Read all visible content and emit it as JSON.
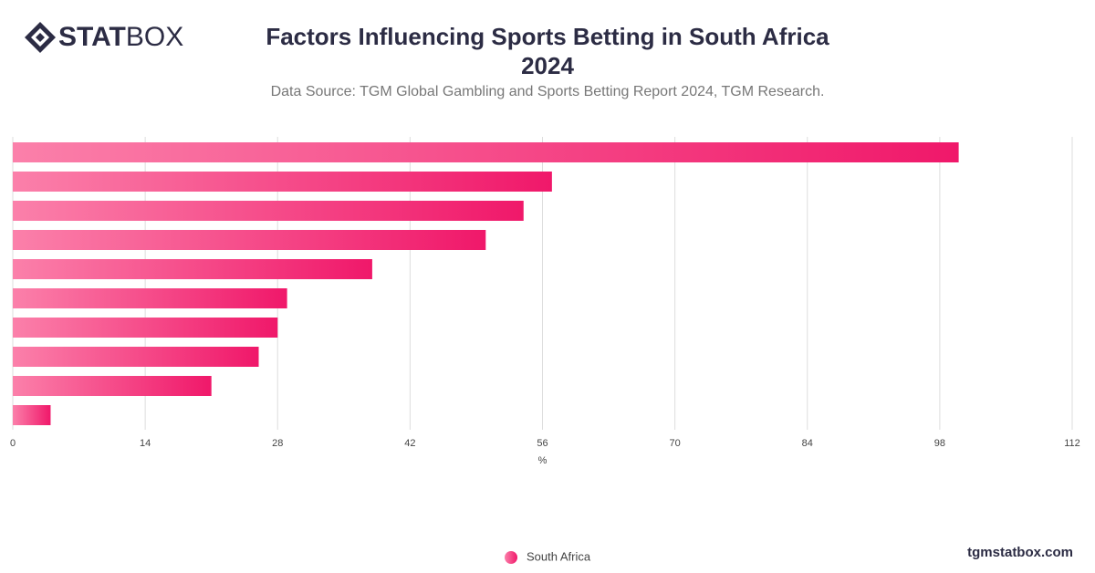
{
  "logo": {
    "bold": "STAT",
    "light": "BOX"
  },
  "footer": "tgmstatbox.com",
  "chart_data": {
    "type": "bar",
    "orientation": "horizontal",
    "title": "Factors Influencing Sports Betting in South Africa 2024",
    "subtitle": "Data Source: TGM Global Gambling and Sports Betting Report 2024, TGM Research.",
    "x_label": "%",
    "categories": [
      null,
      null,
      null,
      null,
      null,
      null,
      null,
      null,
      null,
      null
    ],
    "series": [
      {
        "name": "South Africa",
        "color": [
          "#fb80aa",
          "#f0186a"
        ],
        "values": [
          100,
          57,
          54,
          50,
          38,
          29,
          28,
          26,
          21,
          4
        ]
      }
    ],
    "xlim": [
      0,
      112
    ],
    "xticks": [
      0,
      14,
      28,
      42,
      56,
      70,
      84,
      98,
      112
    ],
    "grid": true,
    "legend": "bottom"
  }
}
